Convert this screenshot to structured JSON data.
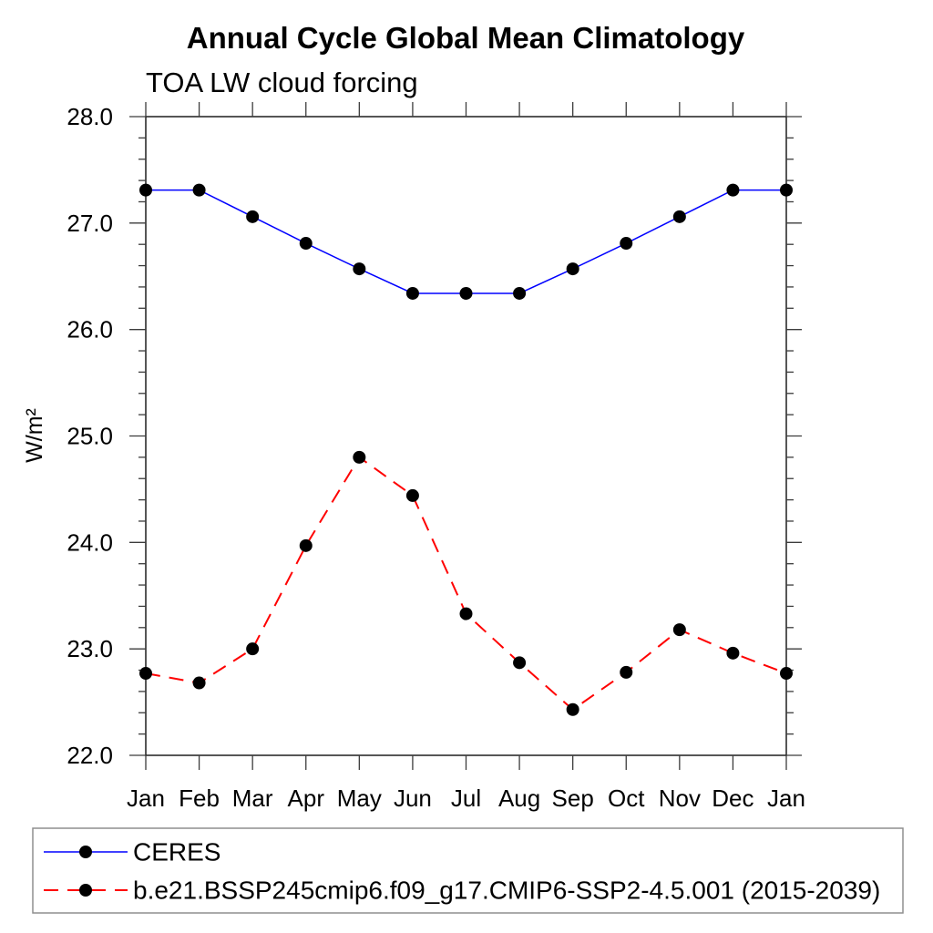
{
  "title": "Annual Cycle Global Mean Climatology",
  "subtitle": "TOA LW cloud forcing",
  "ylabel": "W/m²",
  "legend": {
    "position": "bottom-left-box",
    "entries": [
      {
        "label": "CERES",
        "color": "#0000ff",
        "line_style": "solid",
        "marker": "filled-circle",
        "marker_color": "#000000"
      },
      {
        "label": "b.e21.BSSP245cmip6.f09_g17.CMIP6-SSP2-4.5.001 (2015-2039)",
        "color": "#ff0000",
        "line_style": "dashed",
        "marker": "filled-circle",
        "marker_color": "#000000"
      }
    ]
  },
  "chart_data": {
    "type": "line",
    "title": "Annual Cycle Global Mean Climatology",
    "subtitle": "TOA LW cloud forcing",
    "xlabel": "",
    "ylabel": "W/m²",
    "categories": [
      "Jan",
      "Feb",
      "Mar",
      "Apr",
      "May",
      "Jun",
      "Jul",
      "Aug",
      "Sep",
      "Oct",
      "Nov",
      "Dec",
      "Jan"
    ],
    "series": [
      {
        "name": "CERES",
        "color": "#0000ff",
        "line_style": "solid",
        "line_width": 1.5,
        "marker": "filled-circle",
        "marker_color": "#000000",
        "values": [
          27.31,
          27.31,
          27.06,
          26.81,
          26.57,
          26.34,
          26.34,
          26.34,
          26.57,
          26.81,
          27.06,
          27.31,
          27.31
        ]
      },
      {
        "name": "b.e21.BSSP245cmip6.f09_g17.CMIP6-SSP2-4.5.001 (2015-2039)",
        "color": "#ff0000",
        "line_style": "dashed",
        "line_width": 2,
        "marker": "filled-circle",
        "marker_color": "#000000",
        "values": [
          22.77,
          22.68,
          23.0,
          23.97,
          24.8,
          24.44,
          23.33,
          22.87,
          22.43,
          22.78,
          23.18,
          22.96,
          22.77
        ]
      }
    ],
    "ylim": [
      22.0,
      28.0
    ],
    "ytick_major_step": 1.0,
    "ytick_minor_step": 0.2,
    "ytick_labels": [
      "22.0",
      "23.0",
      "24.0",
      "25.0",
      "26.0",
      "27.0",
      "28.0"
    ],
    "grid": false,
    "legend_position": "bottom-left-box"
  }
}
